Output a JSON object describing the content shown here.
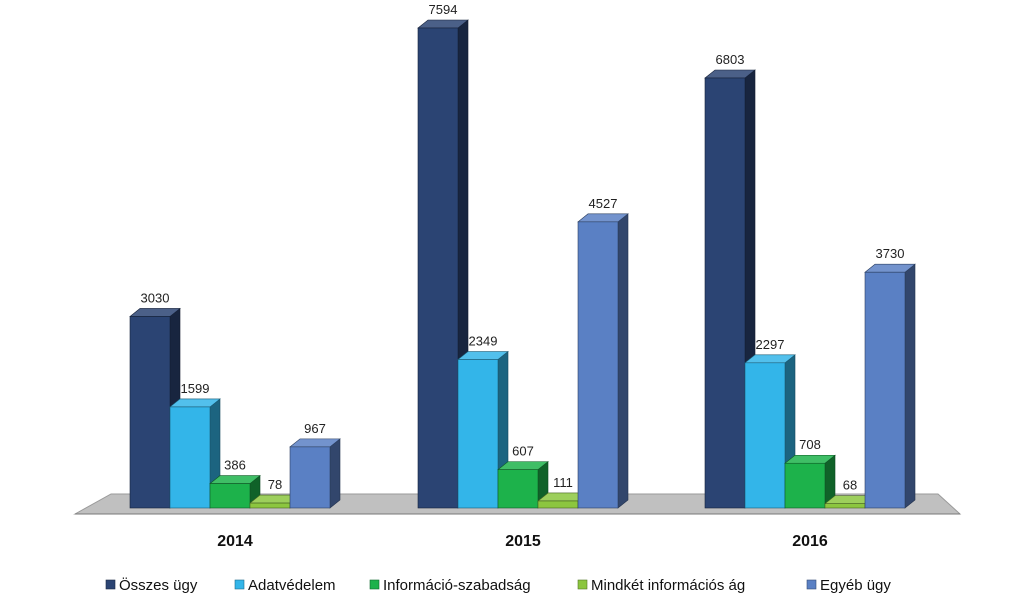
{
  "chart_data": {
    "type": "bar",
    "categories": [
      "2014",
      "2015",
      "2016"
    ],
    "series": [
      {
        "name": "Összes ügy",
        "values": [
          3030,
          7594,
          6803
        ],
        "color": "#2b4473"
      },
      {
        "name": "Adatvédelem",
        "values": [
          1599,
          2349,
          2297
        ],
        "color": "#33b5e9"
      },
      {
        "name": "Információ-szabadság",
        "values": [
          386,
          607,
          708
        ],
        "color": "#1db24b"
      },
      {
        "name": "Mindkét információs ág",
        "values": [
          78,
          111,
          68
        ],
        "color": "#8cc63f"
      },
      {
        "name": "Egyéb ügy",
        "values": [
          967,
          4527,
          3730
        ],
        "color": "#5a80c4"
      }
    ],
    "title": "",
    "xlabel": "",
    "ylabel": "",
    "ylim": [
      0,
      7900
    ],
    "grid": false,
    "legend_position": "bottom",
    "floor_color": "#c0c0c0"
  }
}
